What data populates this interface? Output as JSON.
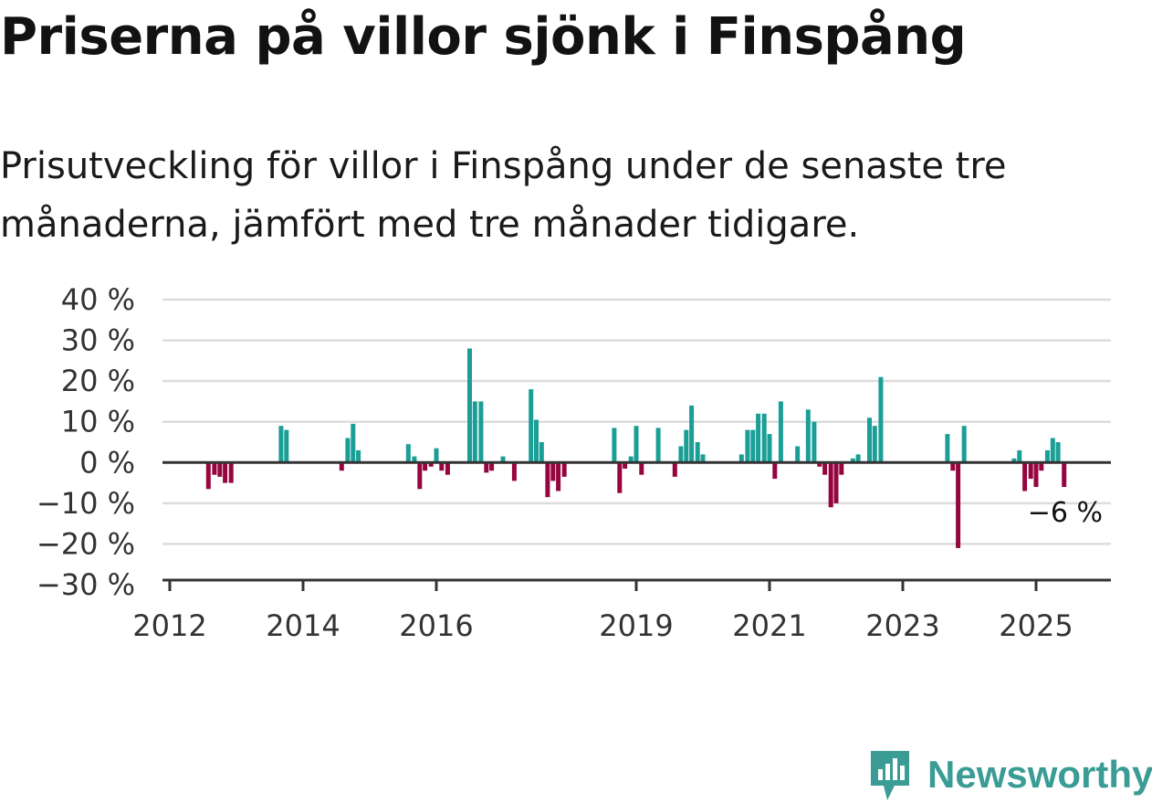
{
  "title": "Priserna på villor sjönk i Finspång",
  "subtitle": "Prisutveckling för villor i Finspång under de senaste tre månaderna, jämfört med tre månader tidigare.",
  "brand": {
    "name": "Newsworthy",
    "color": "#3a9c94"
  },
  "colors": {
    "positive": "#1a9e96",
    "negative": "#96053f",
    "grid": "#dcdcdc",
    "axis": "#333333"
  },
  "chart_data": {
    "type": "bar",
    "y_unit": "%",
    "ylim": [
      -30,
      40
    ],
    "yticks": [
      40,
      30,
      20,
      10,
      0,
      -10,
      -20,
      -30
    ],
    "ytick_labels": [
      "40 %",
      "30 %",
      "20 %",
      "10 %",
      "0 %",
      "−10 %",
      "−20 %",
      "−30 %"
    ],
    "xtick_labels": [
      "2012",
      "2014",
      "2016",
      "2019",
      "2021",
      "2023",
      "2025"
    ],
    "xtick_values": [
      2012,
      2014,
      2016,
      2019,
      2021,
      2023,
      2025
    ],
    "xlim": [
      2012,
      2026.1
    ],
    "grid": true,
    "annotation": {
      "text": "−6 %",
      "value": -6
    },
    "x": [
      2012.58,
      2012.67,
      2012.75,
      2012.83,
      2012.92,
      2013.67,
      2013.75,
      2014.58,
      2014.67,
      2014.75,
      2014.83,
      2015.58,
      2015.67,
      2015.75,
      2015.83,
      2015.92,
      2016.0,
      2016.08,
      2016.17,
      2016.5,
      2016.58,
      2016.67,
      2016.75,
      2016.83,
      2017.0,
      2017.17,
      2017.42,
      2017.5,
      2017.58,
      2017.67,
      2017.75,
      2017.83,
      2017.92,
      2018.67,
      2018.75,
      2018.83,
      2018.92,
      2019.0,
      2019.08,
      2019.33,
      2019.58,
      2019.67,
      2019.75,
      2019.83,
      2019.92,
      2020.0,
      2020.58,
      2020.67,
      2020.75,
      2020.83,
      2020.92,
      2021.0,
      2021.08,
      2021.17,
      2021.42,
      2021.58,
      2021.67,
      2021.75,
      2021.83,
      2021.92,
      2022.0,
      2022.08,
      2022.25,
      2022.33,
      2022.5,
      2022.58,
      2022.67,
      2023.67,
      2023.75,
      2023.83,
      2023.92,
      2024.67,
      2024.75,
      2024.83,
      2024.92,
      2025.0,
      2025.08,
      2025.17,
      2025.25,
      2025.33,
      2025.42,
      2025.5,
      2025.58
    ],
    "values": [
      -6.5,
      -3,
      -3.5,
      -5,
      -5,
      9,
      8,
      -2,
      6,
      9.5,
      3,
      4.5,
      1.5,
      -6.5,
      -2,
      -1,
      3.5,
      -2,
      -3,
      28,
      15,
      15,
      -2.5,
      -2,
      1.5,
      -4.5,
      18,
      10.5,
      5,
      -8.5,
      -4.5,
      -7,
      -3.5,
      8.5,
      -7.5,
      -1.5,
      1.5,
      9,
      -3,
      8.5,
      -3.5,
      4,
      8,
      14,
      5,
      2,
      2,
      8,
      8,
      12,
      12,
      7,
      -4,
      15,
      4,
      13,
      10,
      -1,
      -3,
      -11,
      -10,
      -3,
      1,
      2,
      11,
      9,
      21,
      7,
      -2,
      -21,
      9,
      1,
      3,
      -7,
      -4,
      -6,
      -2,
      3,
      6,
      5,
      -6,
      0,
      0
    ]
  }
}
